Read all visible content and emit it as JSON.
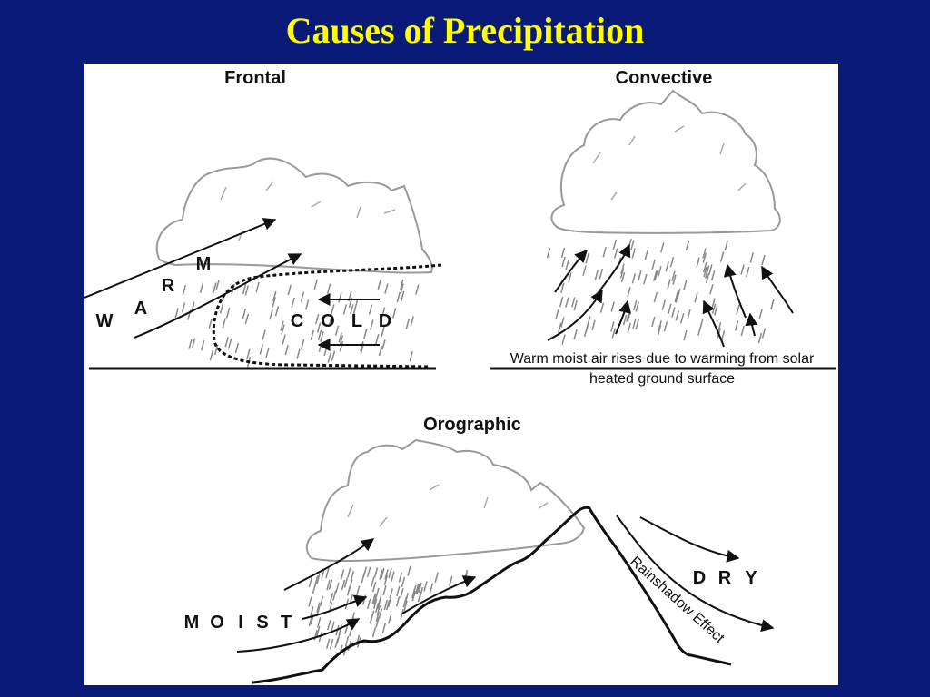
{
  "slide": {
    "title": "Causes of Precipitation"
  },
  "panels": {
    "frontal": {
      "heading": "Frontal",
      "warm_letters": [
        "W",
        "A",
        "R",
        "M"
      ],
      "cold_letters": [
        "C",
        "O",
        "L",
        "D"
      ]
    },
    "convective": {
      "heading": "Convective",
      "caption_line1": "Warm moist air rises due to warming from solar",
      "caption_line2": "heated ground surface"
    },
    "orographic": {
      "heading": "Orographic",
      "moist_letters": [
        "M",
        "O",
        "I",
        "S",
        "T"
      ],
      "dry_letters": [
        "D",
        "R",
        "Y"
      ],
      "rainshadow_label": "Rainshadow Effect"
    }
  },
  "colors": {
    "background": "#0a1a78",
    "title": "#ffff00",
    "figure_bg": "#ffffff",
    "cloud_outline": "#999999",
    "rain": "#888888",
    "ink": "#111111"
  }
}
